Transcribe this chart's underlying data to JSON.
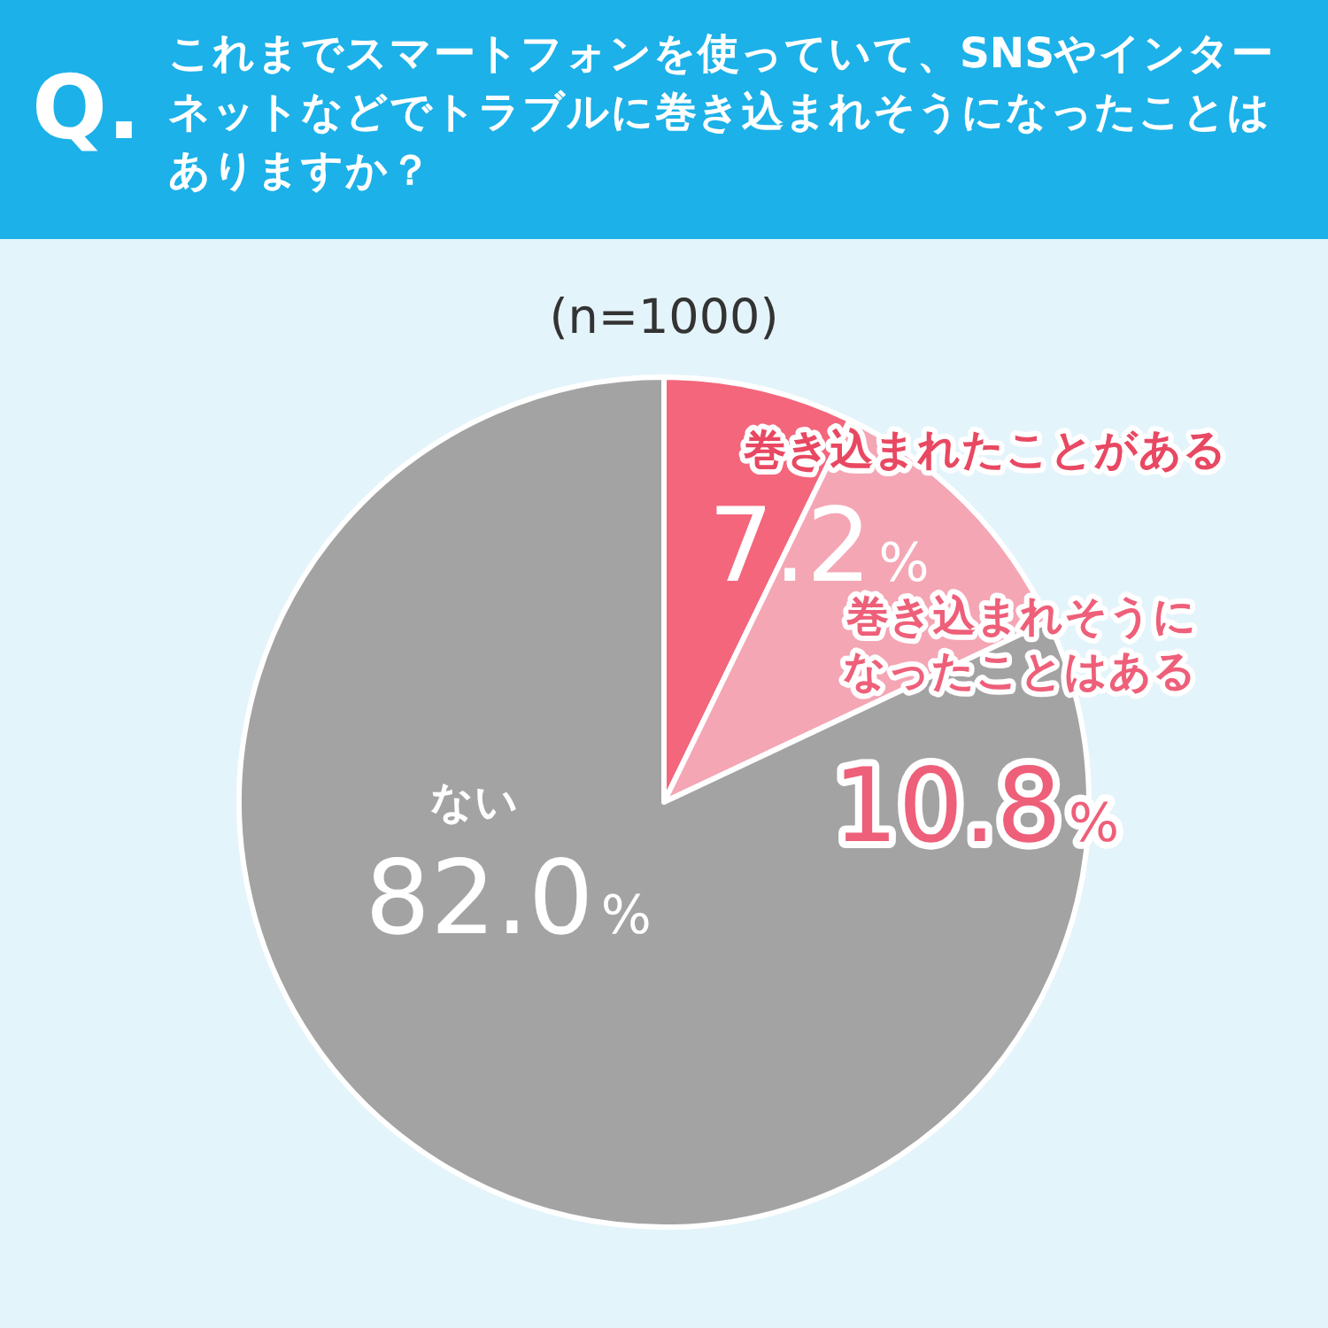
{
  "chart_data": {
    "type": "pie",
    "title": "これまでスマートフォンを使っていて、SNSやインターネットなどでトラブルに巻き込まれそうになったことはありますか？",
    "subtitle": "(n=1000)",
    "annotations": [
      "Q."
    ],
    "categories": [
      "巻き込まれたことがある",
      "巻き込まれそうになったことはある",
      "ない"
    ],
    "values": [
      7.2,
      10.8,
      82.0
    ],
    "colors": [
      "#f3667c",
      "#f4a6b4",
      "#a3a3a3"
    ],
    "data_labels": true,
    "value_labels": [
      "7.2%",
      "10.8%",
      "82.0%"
    ]
  }
}
